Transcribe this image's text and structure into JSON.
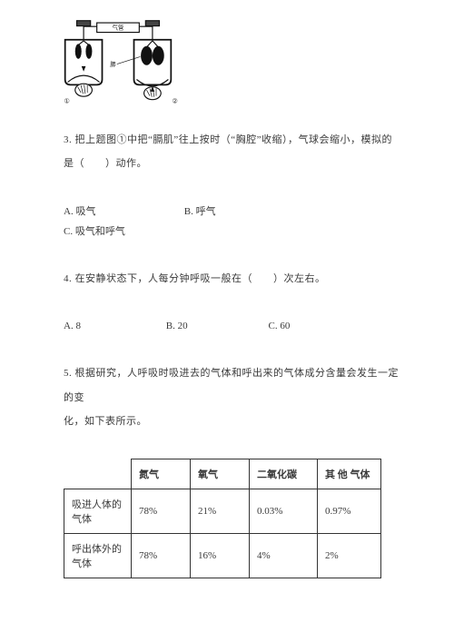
{
  "diagram": {
    "circle_labels": [
      "①",
      "②"
    ],
    "tube_label": "气管",
    "lung_label": "肺",
    "bottle_stroke": "#111111",
    "bottle_fill": "#ffffff",
    "lung_fill": "#111111"
  },
  "q3": {
    "text_line1": "3. 把上题图①中把“膈肌”往上按时（“胸腔”收缩），气球会缩小，模拟的",
    "text_line2": "是（　　）动作。",
    "opts": {
      "A": "A. 吸气",
      "B": "B. 呼气",
      "C": "C. 吸气和呼气"
    },
    "opt_widths": {
      "A": 130,
      "B": 130,
      "C": 120
    }
  },
  "q4": {
    "text": "4. 在安静状态下，人每分钟呼吸一般在（　　）次左右。",
    "opts": {
      "A": "A. 8",
      "B": "B. 20",
      "C": "C. 60"
    },
    "opt_widths": {
      "A": 110,
      "B": 110,
      "C": 90
    }
  },
  "q5": {
    "text_line1": "5. 根据研究，人呼吸时吸进去的气体和呼出来的气体成分含量会发生一定的变",
    "text_line2": "化，如下表所示。"
  },
  "table": {
    "columns": [
      "氮气",
      "氧气",
      "二氧化碳",
      "其 他 气体"
    ],
    "rows": [
      {
        "label": "吸进人体的气体",
        "cells": [
          "78%",
          "21%",
          "0.03%",
          "0.97%"
        ]
      },
      {
        "label": "呼出体外的气体",
        "cells": [
          "78%",
          "16%",
          "4%",
          "2%"
        ]
      }
    ],
    "col_widths": [
      "auto",
      "50px",
      "50px",
      "60px",
      "55px"
    ],
    "border_color": "#333333",
    "header_fontweight": "bold",
    "cell_fontsize": 11
  }
}
